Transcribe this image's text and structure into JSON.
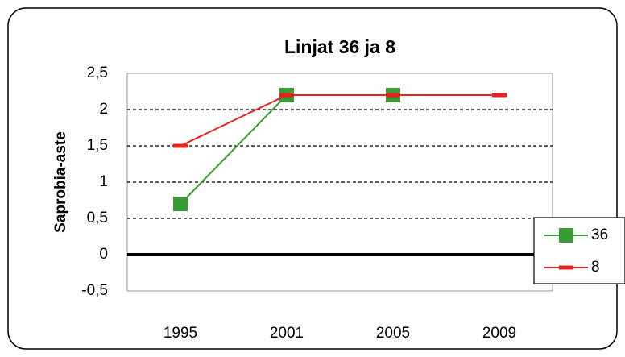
{
  "chart_data": {
    "type": "line",
    "title": "Linjat 36 ja 8",
    "y_label": "Saprobia-aste",
    "categories": [
      "1995",
      "2001",
      "2005",
      "2009"
    ],
    "series": [
      {
        "name": "36",
        "color": "#3a9a35",
        "values": [
          0.7,
          2.2,
          2.2,
          null
        ]
      },
      {
        "name": "8",
        "color": "#e8231f",
        "values": [
          1.5,
          2.2,
          2.2,
          2.2
        ]
      }
    ],
    "ylim": [
      -0.5,
      2.5
    ],
    "yticks": [
      {
        "value": -0.5,
        "label": "-0,5"
      },
      0,
      {
        "value": 0.5,
        "label": "0,5"
      },
      1,
      {
        "value": 1.5,
        "label": "1,5"
      },
      2,
      {
        "value": 2.5,
        "label": "2,5"
      }
    ],
    "grid": true,
    "legend": "right"
  }
}
